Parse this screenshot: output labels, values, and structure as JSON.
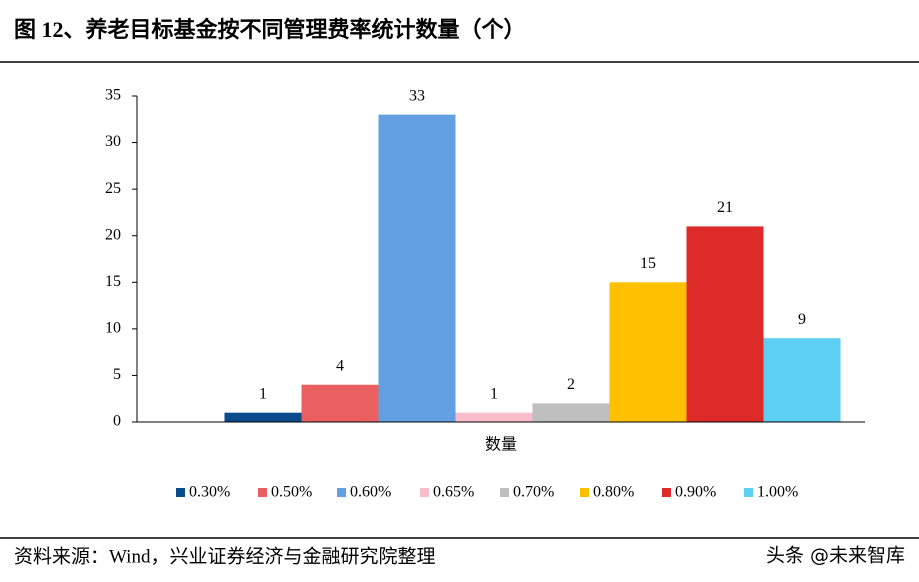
{
  "chart_data": {
    "type": "bar",
    "title": "图 12、养老目标基金按不同管理费率统计数量（个）",
    "categories": [
      "数量"
    ],
    "series": [
      {
        "name": "0.30%",
        "color": "#0b4a8b",
        "values": [
          1
        ]
      },
      {
        "name": "0.50%",
        "color": "#ea5f5f",
        "values": [
          4
        ]
      },
      {
        "name": "0.60%",
        "color": "#62a0e2",
        "values": [
          33
        ]
      },
      {
        "name": "0.65%",
        "color": "#f8bccb",
        "values": [
          1
        ]
      },
      {
        "name": "0.70%",
        "color": "#bfbfbf",
        "values": [
          2
        ]
      },
      {
        "name": "0.80%",
        "color": "#ffc000",
        "values": [
          15
        ]
      },
      {
        "name": "0.90%",
        "color": "#df2a2a",
        "values": [
          21
        ]
      },
      {
        "name": "1.00%",
        "color": "#5ccff2",
        "values": [
          9
        ]
      }
    ],
    "ylim": [
      0,
      35
    ],
    "yticks": [
      0,
      5,
      10,
      15,
      20,
      25,
      30,
      35
    ],
    "grid": false,
    "legend": "bottom"
  },
  "source": "资料来源：Wind，兴业证券经济与金融研究院整理",
  "watermark": "头条 @未来智库"
}
